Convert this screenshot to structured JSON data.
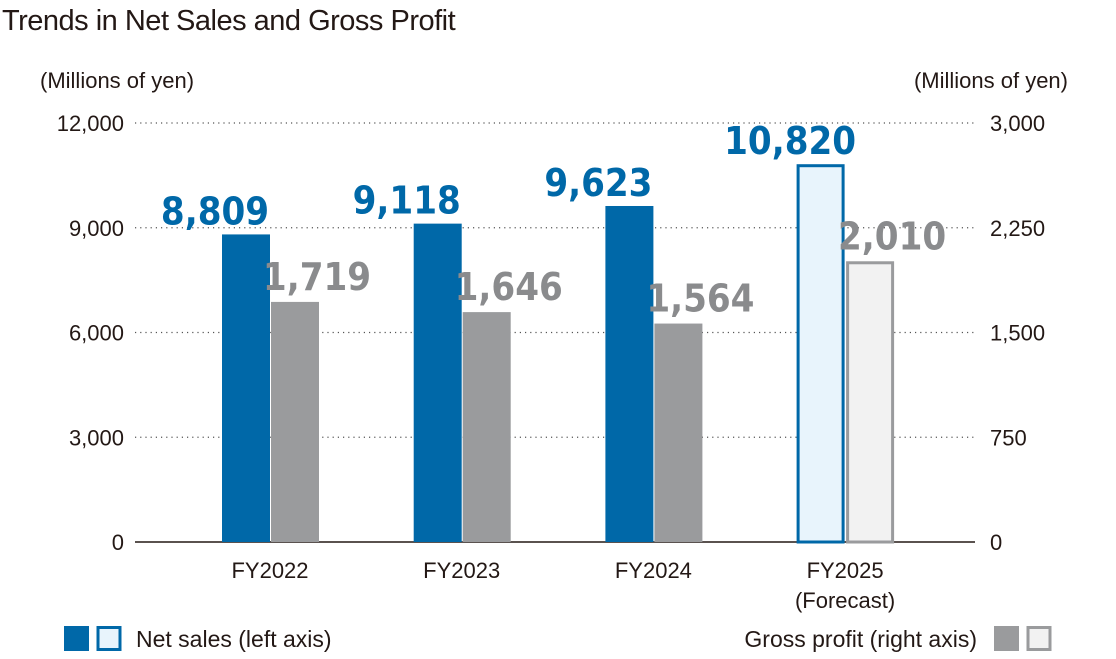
{
  "chart_data": {
    "type": "bar",
    "title": "Trends in Net Sales and Gross Profit",
    "categories": [
      "FY2022",
      "FY2023",
      "FY2024",
      "FY2025"
    ],
    "category_sublabels": [
      "",
      "",
      "",
      "(Forecast)"
    ],
    "ylabel_left": "(Millions of yen)",
    "ylabel_right": "(Millions of yen)",
    "ylim_left": [
      0,
      12000
    ],
    "ylim_right": [
      0,
      3000
    ],
    "yticks_left": [
      "0",
      "3,000",
      "6,000",
      "9,000",
      "12,000"
    ],
    "yticks_right": [
      "0",
      "750",
      "1,500",
      "2,250",
      "3,000"
    ],
    "grid": "dotted horizontal",
    "series": [
      {
        "name": "Net sales (left axis)",
        "axis": "left",
        "values": [
          8809,
          9118,
          9623,
          10820
        ],
        "labels": [
          "8,809",
          "9,118",
          "9,623",
          "10,820"
        ],
        "color": "#0068a8",
        "forecast_fill": "#e8f4fc"
      },
      {
        "name": "Gross profit (right axis)",
        "axis": "right",
        "values": [
          1719,
          1646,
          1564,
          2010
        ],
        "labels": [
          "1,719",
          "1,646",
          "1,564",
          "2,010"
        ],
        "color": "#9a9b9d",
        "label_color": "#8a8b8d",
        "forecast_fill": "#f2f2f2"
      }
    ],
    "forecast_index": 3,
    "legend": "bottom"
  }
}
